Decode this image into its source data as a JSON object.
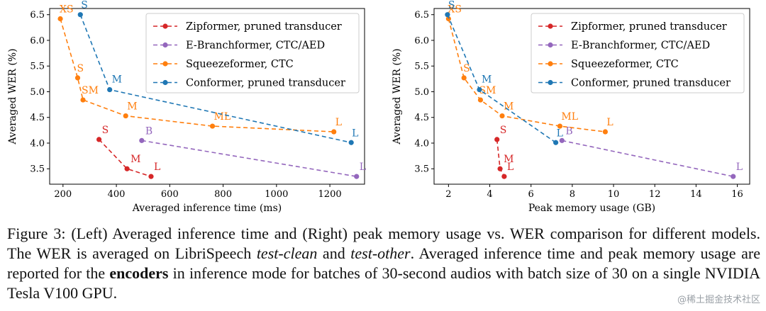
{
  "figure": {
    "caption": {
      "label": "Figure 3:",
      "text_1": "(Left) Averaged inference time and (Right) peak memory usage vs. WER comparison for different models. The WER is averaged on LibriSpeech ",
      "italic_1": "test-clean",
      "text_2": " and ",
      "italic_2": "test-other",
      "text_3": ". Averaged inference time and peak memory usage are reported for the ",
      "bold_1": "encoders",
      "text_4": " in inference mode for batches of 30-second audios with batch size of 30 on a single NVIDIA Tesla V100 GPU."
    },
    "watermark": "@稀土掘金技术社区"
  },
  "chart_data": [
    {
      "type": "line",
      "xlabel": "Averaged inference time (ms)",
      "ylabel": "Averaged WER (%)",
      "xlim": [
        150,
        1330
      ],
      "ylim": [
        3.2,
        6.62
      ],
      "xticks": [
        200,
        400,
        600,
        800,
        1000,
        1200
      ],
      "yticks": [
        3.5,
        4.0,
        4.5,
        5.0,
        5.5,
        6.0,
        6.5
      ],
      "grid": false,
      "legend": "top-right",
      "series": [
        {
          "name": "Zipformer, pruned transducer",
          "color": "#d62728",
          "points": [
            {
              "x": 335,
              "y": 4.07,
              "label": "S"
            },
            {
              "x": 440,
              "y": 3.5,
              "label": "M"
            },
            {
              "x": 530,
              "y": 3.35,
              "label": "L"
            }
          ]
        },
        {
          "name": "E-Branchformer, CTC/AED",
          "color": "#9467bd",
          "points": [
            {
              "x": 495,
              "y": 4.05,
              "label": "B"
            },
            {
              "x": 1300,
              "y": 3.35,
              "label": "L"
            }
          ]
        },
        {
          "name": "Squeezeformer, CTC",
          "color": "#ff7f0e",
          "points": [
            {
              "x": 190,
              "y": 6.42,
              "label": "XS"
            },
            {
              "x": 255,
              "y": 5.27,
              "label": "S"
            },
            {
              "x": 275,
              "y": 4.84,
              "label": "SM"
            },
            {
              "x": 435,
              "y": 4.53,
              "label": "M"
            },
            {
              "x": 760,
              "y": 4.33,
              "label": "ML"
            },
            {
              "x": 1215,
              "y": 4.22,
              "label": "L"
            }
          ]
        },
        {
          "name": "Conformer, pruned transducer",
          "color": "#1f77b4",
          "points": [
            {
              "x": 265,
              "y": 6.5,
              "label": "S"
            },
            {
              "x": 375,
              "y": 5.04,
              "label": "M"
            },
            {
              "x": 1280,
              "y": 4.01,
              "label": "L"
            }
          ]
        }
      ]
    },
    {
      "type": "line",
      "xlabel": "Peak memory usage (GB)",
      "ylabel": "Averaged WER (%)",
      "xlim": [
        1.3,
        16.6
      ],
      "ylim": [
        3.2,
        6.62
      ],
      "xticks": [
        2,
        4,
        6,
        8,
        10,
        12,
        14,
        16
      ],
      "yticks": [
        3.5,
        4.0,
        4.5,
        5.0,
        5.5,
        6.0,
        6.5
      ],
      "grid": false,
      "legend": "top-right",
      "series": [
        {
          "name": "Zipformer, pruned transducer",
          "color": "#d62728",
          "points": [
            {
              "x": 4.35,
              "y": 4.07,
              "label": "S"
            },
            {
              "x": 4.5,
              "y": 3.5,
              "label": "M"
            },
            {
              "x": 4.7,
              "y": 3.35,
              "label": "L"
            }
          ]
        },
        {
          "name": "E-Branchformer, CTC/AED",
          "color": "#9467bd",
          "points": [
            {
              "x": 7.5,
              "y": 4.05,
              "label": "B"
            },
            {
              "x": 15.8,
              "y": 3.35,
              "label": "L"
            }
          ]
        },
        {
          "name": "Squeezeformer, CTC",
          "color": "#ff7f0e",
          "points": [
            {
              "x": 2.0,
              "y": 6.42,
              "label": "XS"
            },
            {
              "x": 2.75,
              "y": 5.27,
              "label": "S"
            },
            {
              "x": 3.55,
              "y": 4.84,
              "label": "SM"
            },
            {
              "x": 4.6,
              "y": 4.53,
              "label": "M"
            },
            {
              "x": 7.4,
              "y": 4.33,
              "label": "ML"
            },
            {
              "x": 9.6,
              "y": 4.22,
              "label": "L"
            }
          ]
        },
        {
          "name": "Conformer, pruned transducer",
          "color": "#1f77b4",
          "points": [
            {
              "x": 1.95,
              "y": 6.5,
              "label": "S"
            },
            {
              "x": 3.5,
              "y": 5.04,
              "label": "M"
            },
            {
              "x": 7.2,
              "y": 4.01,
              "label": "L"
            }
          ]
        }
      ]
    }
  ]
}
